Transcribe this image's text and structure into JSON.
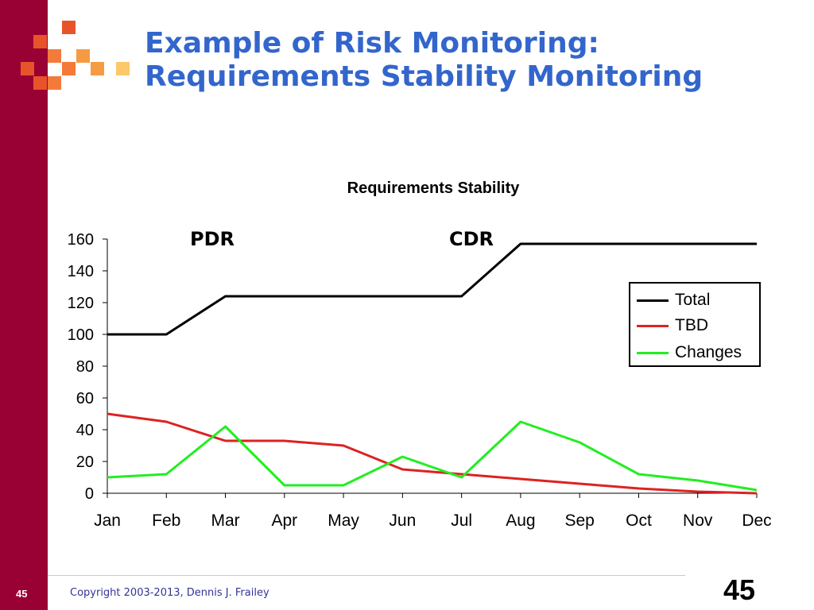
{
  "slide": {
    "title_line1": "Example of Risk Monitoring:",
    "title_line2": "Requirements Stability Monitoring",
    "copyright": "Copyright 2003-2013, Dennis J. Frailey",
    "page_number_small": "45",
    "page_number_large": "45"
  },
  "colors": {
    "left_bar": "#990033",
    "title": "#3366CC",
    "deco": [
      "#E8542A",
      "#F47A3A",
      "#F59B43",
      "#FBC86A"
    ]
  },
  "chart_data": {
    "type": "line",
    "title": "Requirements Stability",
    "categories": [
      "Jan",
      "Feb",
      "Mar",
      "Apr",
      "May",
      "Jun",
      "Jul",
      "Aug",
      "Sep",
      "Oct",
      "Nov",
      "Dec"
    ],
    "yticks": [
      "0",
      "20",
      "40",
      "60",
      "80",
      "100",
      "120",
      "140",
      "160"
    ],
    "ylim": [
      0,
      160
    ],
    "grid": false,
    "legend_position": "right",
    "series": [
      {
        "name": "Total",
        "color": "#000000",
        "values": [
          100,
          100,
          124,
          124,
          124,
          124,
          124,
          157,
          157,
          157,
          157,
          157
        ]
      },
      {
        "name": "TBD",
        "color": "#DD2222",
        "values": [
          50,
          45,
          33,
          33,
          30,
          15,
          12,
          9,
          6,
          3,
          1,
          0
        ]
      },
      {
        "name": "Changes",
        "color": "#22EE22",
        "values": [
          10,
          12,
          42,
          5,
          5,
          23,
          10,
          45,
          32,
          12,
          8,
          2
        ]
      }
    ],
    "annotations": [
      {
        "text": "PDR"
      },
      {
        "text": "CDR"
      }
    ]
  }
}
